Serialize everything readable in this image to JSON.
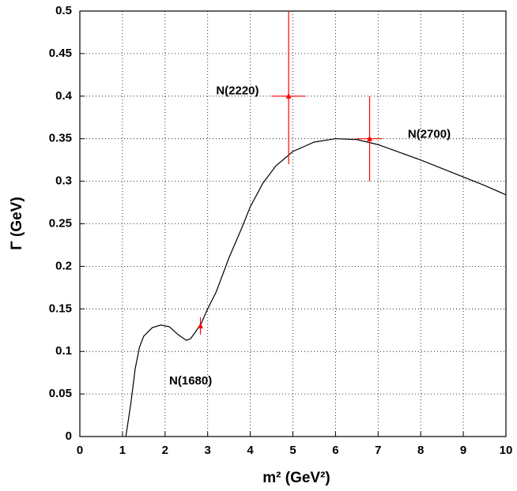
{
  "chart_data": {
    "type": "line",
    "x_label": "m² (GeV²)",
    "y_label": "Γ (GeV)",
    "xlim": [
      0,
      10
    ],
    "ylim": [
      0,
      0.5
    ],
    "xticks": [
      0,
      1,
      2,
      3,
      4,
      5,
      6,
      7,
      8,
      9,
      10
    ],
    "yticks": [
      0,
      0.05,
      0.1,
      0.15,
      0.2,
      0.25,
      0.3,
      0.35,
      0.4,
      0.45,
      0.5
    ],
    "grid": true,
    "series": [
      {
        "color": "#000000",
        "x": [
          1.08,
          1.2,
          1.3,
          1.4,
          1.5,
          1.7,
          1.9,
          2.1,
          2.3,
          2.5,
          2.6,
          2.7,
          2.85,
          3.0,
          3.2,
          3.5,
          3.8,
          4.0,
          4.3,
          4.6,
          5.0,
          5.5,
          6.0,
          6.5,
          7.0,
          7.5,
          8.0,
          8.5,
          9.0,
          9.5,
          10.0
        ],
        "values": [
          0,
          0.04,
          0.08,
          0.105,
          0.118,
          0.128,
          0.131,
          0.129,
          0.12,
          0.113,
          0.115,
          0.122,
          0.133,
          0.15,
          0.17,
          0.21,
          0.245,
          0.27,
          0.298,
          0.318,
          0.335,
          0.346,
          0.35,
          0.349,
          0.343,
          0.334,
          0.325,
          0.315,
          0.305,
          0.295,
          0.284
        ]
      }
    ],
    "points": {
      "color": "#ff0000",
      "x": [
        2.83,
        4.9,
        6.8
      ],
      "values": [
        0.13,
        0.4,
        0.35
      ],
      "xerr": [
        0.03,
        0.4,
        0.3
      ],
      "yerr_minus": [
        0.01,
        0.08,
        0.05
      ],
      "yerr_plus": [
        0.01,
        0.1,
        0.05
      ]
    },
    "annotations": [
      {
        "text": "N(1680)",
        "x": 2.6,
        "y": 0.065
      },
      {
        "text": "N(2220)",
        "x": 3.7,
        "y": 0.406
      },
      {
        "text": "N(2700)",
        "x": 8.2,
        "y": 0.355
      }
    ]
  }
}
